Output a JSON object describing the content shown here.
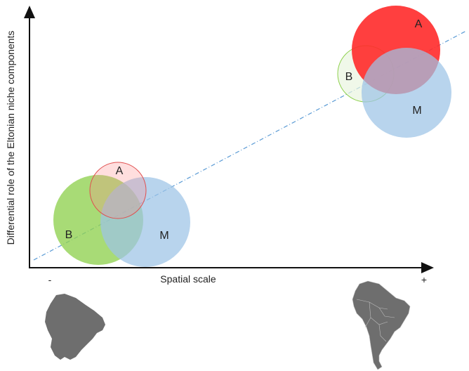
{
  "axes": {
    "ylabel": "Differential  role of the Eltonian niche components",
    "xlabel": "Spatial scale",
    "x_min_marker": "-",
    "x_max_marker": "+"
  },
  "circles": {
    "small_scale": {
      "a_label": "A",
      "b_label": "B",
      "m_label": "M"
    },
    "large_scale": {
      "a_label": "A",
      "b_label": "B",
      "m_label": "M"
    }
  },
  "colors": {
    "a_circle": "#ff2a2a",
    "b_circle": "#8fd14f",
    "m_circle": "#9dc3e6",
    "trend_line": "#5b9bd5",
    "map_fill": "#6e6e6e"
  },
  "icons": {
    "left_map": "french-guiana-map-icon",
    "right_map": "south-america-map-icon"
  }
}
